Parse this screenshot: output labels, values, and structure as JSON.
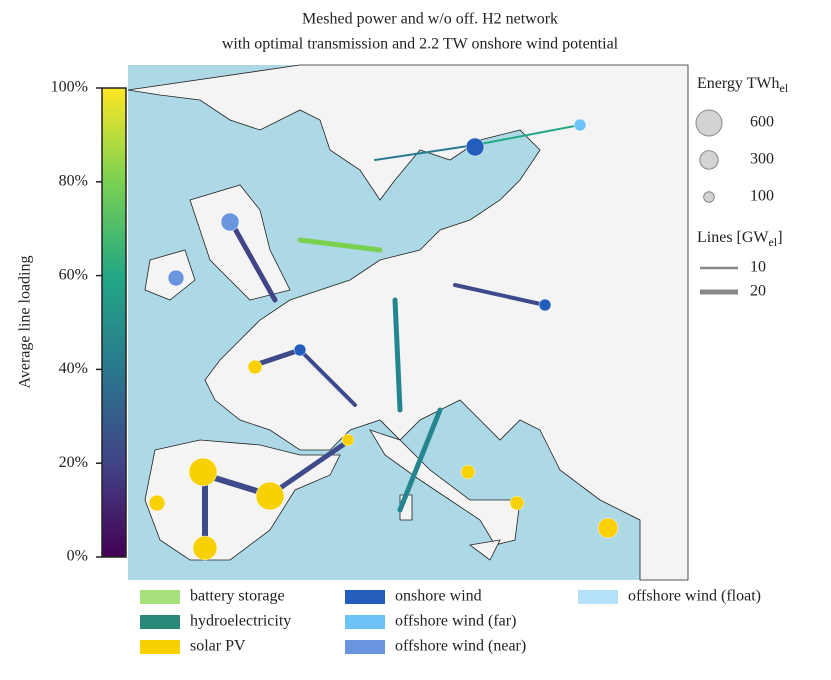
{
  "header": {
    "title_line1": "Meshed power and w/o off. H2 network",
    "title_line2": "with optimal transmission and 2.2 TW onshore wind potential"
  },
  "colorbar": {
    "label": "Average line loading",
    "lim": [
      0,
      100
    ],
    "ticks": [
      {
        "value": 0,
        "label": "0%"
      },
      {
        "value": 20,
        "label": "20%"
      },
      {
        "value": 40,
        "label": "40%"
      },
      {
        "value": 60,
        "label": "60%"
      },
      {
        "value": 80,
        "label": "80%"
      },
      {
        "value": 100,
        "label": "100%"
      }
    ]
  },
  "energy_legend": {
    "title": "Energy TWh",
    "subscript": "el",
    "sizes": [
      600,
      300,
      100
    ]
  },
  "lines_legend": {
    "title": "Lines [GW",
    "subscript": "el",
    "title_end": "]",
    "widths": [
      10,
      20
    ]
  },
  "carrier_legend": [
    {
      "name": "battery storage",
      "color": "#a6e07a"
    },
    {
      "name": "hydroelectricity",
      "color": "#2a8a7a"
    },
    {
      "name": "solar PV",
      "color": "#f9d002"
    },
    {
      "name": "onshore wind",
      "color": "#235ebc"
    },
    {
      "name": "offshore wind (far)",
      "color": "#6bc4f5"
    },
    {
      "name": "offshore wind (near)",
      "color": "#6895dd"
    },
    {
      "name": "offshore wind (float)",
      "color": "#b5e2fa"
    }
  ]
}
